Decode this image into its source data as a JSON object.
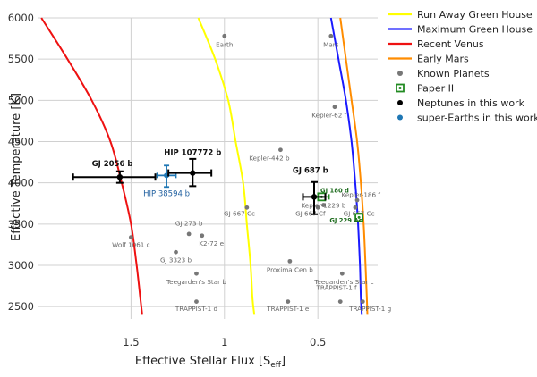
{
  "chart_data": {
    "type": "scatter",
    "xlabel": "Effective Stellar Flux [S",
    "xlabel_sub": "eff",
    "xlabel_close": "]",
    "ylabel": "Effective Temperature [K]",
    "x_reversed": true,
    "xlim": [
      2.0,
      0.18
    ],
    "ylim": [
      2350,
      6000
    ],
    "x_ticks": [
      1.5,
      1,
      0.5
    ],
    "x_tick_labels": [
      "1.5",
      "1",
      "0.5"
    ],
    "y_ticks": [
      2500,
      3000,
      3500,
      4000,
      4500,
      5000,
      5500,
      6000
    ],
    "y_tick_labels": [
      "2500",
      "3000",
      "3500",
      "4000",
      "4500",
      "5000",
      "5500",
      "6000"
    ],
    "grid": true,
    "legend_position": "right",
    "colors": {
      "run_away": "#ffff00",
      "max_gh": "#1a1aff",
      "recent_venus": "#ee1111",
      "early_mars": "#ff8c00",
      "known": "#777777",
      "paper2": "#228b22",
      "neptunes": "#000000",
      "super_earths": "#1f77b4"
    },
    "legend": [
      {
        "label": "Run Away Green House",
        "kind": "line",
        "color": "#ffff00"
      },
      {
        "label": "Maximum Green House",
        "kind": "line",
        "color": "#1a1aff"
      },
      {
        "label": "Recent Venus",
        "kind": "line",
        "color": "#ee1111"
      },
      {
        "label": "Early Mars",
        "kind": "line",
        "color": "#ff8c00"
      },
      {
        "label": "Known Planets",
        "kind": "dot",
        "color": "#777777"
      },
      {
        "label": "Paper II",
        "kind": "square",
        "color": "#228b22"
      },
      {
        "label": "Neptunes in this work",
        "kind": "dot",
        "color": "#000000"
      },
      {
        "label": "super-Earths in this work",
        "kind": "dot",
        "color": "#1f77b4"
      }
    ],
    "curves": [
      {
        "label": "Recent Venus",
        "color": "#ee1111",
        "points": [
          [
            1.98,
            6000
          ],
          [
            1.84,
            5500
          ],
          [
            1.71,
            5000
          ],
          [
            1.61,
            4500
          ],
          [
            1.55,
            4000
          ],
          [
            1.5,
            3500
          ],
          [
            1.47,
            3000
          ],
          [
            1.45,
            2600
          ],
          [
            1.44,
            2400
          ]
        ]
      },
      {
        "label": "Run Away Green House",
        "color": "#ffff00",
        "points": [
          [
            1.14,
            6000
          ],
          [
            1.05,
            5500
          ],
          [
            0.98,
            5000
          ],
          [
            0.94,
            4500
          ],
          [
            0.9,
            4000
          ],
          [
            0.88,
            3500
          ],
          [
            0.86,
            3000
          ],
          [
            0.85,
            2600
          ],
          [
            0.84,
            2400
          ]
        ]
      },
      {
        "label": "Maximum Green House",
        "color": "#1a1aff",
        "points": [
          [
            0.43,
            6000
          ],
          [
            0.39,
            5500
          ],
          [
            0.35,
            5000
          ],
          [
            0.32,
            4500
          ],
          [
            0.3,
            4000
          ],
          [
            0.285,
            3500
          ],
          [
            0.275,
            3000
          ],
          [
            0.27,
            2600
          ],
          [
            0.265,
            2400
          ]
        ]
      },
      {
        "label": "Early Mars",
        "color": "#ff8c00",
        "points": [
          [
            0.38,
            6000
          ],
          [
            0.35,
            5500
          ],
          [
            0.32,
            5000
          ],
          [
            0.29,
            4500
          ],
          [
            0.27,
            4000
          ],
          [
            0.255,
            3500
          ],
          [
            0.245,
            3000
          ],
          [
            0.238,
            2600
          ],
          [
            0.235,
            2400
          ]
        ]
      }
    ],
    "known_planets": [
      {
        "name": "Earth",
        "x": 1.0,
        "y": 5780,
        "lx": 1.0,
        "ly": 5650
      },
      {
        "name": "Mars",
        "x": 0.43,
        "y": 5780,
        "lx": 0.43,
        "ly": 5650
      },
      {
        "name": "Kepler-62 f",
        "x": 0.41,
        "y": 4920,
        "lx": 0.44,
        "ly": 4790
      },
      {
        "name": "Kepler-442 b",
        "x": 0.7,
        "y": 4400,
        "lx": 0.76,
        "ly": 4270
      },
      {
        "name": "GJ 667 Cc",
        "x": 0.88,
        "y": 3700,
        "lx": 0.92,
        "ly": 3600
      },
      {
        "name": "GJ 667 Cf",
        "x": 0.5,
        "y": 3700,
        "lx": 0.54,
        "ly": 3600
      },
      {
        "name": "Kepler-1229 b",
        "x": 0.47,
        "y": 3730,
        "lx": 0.47,
        "ly": 3700
      },
      {
        "name": "Kepler-186 f",
        "x": 0.29,
        "y": 3790,
        "lx": 0.27,
        "ly": 3830
      },
      {
        "name": "GJ 667 Cc",
        "x": 0.3,
        "y": 3700,
        "lx": 0.28,
        "ly": 3600
      },
      {
        "name": "GJ 273 b",
        "x": 1.19,
        "y": 3380,
        "lx": 1.19,
        "ly": 3480
      },
      {
        "name": "K2-72 e",
        "x": 1.12,
        "y": 3360,
        "lx": 1.07,
        "ly": 3240
      },
      {
        "name": "Wolf 1061 c",
        "x": 1.5,
        "y": 3340,
        "lx": 1.5,
        "ly": 3220
      },
      {
        "name": "GJ 3323 b",
        "x": 1.26,
        "y": 3160,
        "lx": 1.26,
        "ly": 3040
      },
      {
        "name": "Proxima Cen b",
        "x": 0.65,
        "y": 3050,
        "lx": 0.65,
        "ly": 2920
      },
      {
        "name": "Teegarden's Star b",
        "x": 1.15,
        "y": 2900,
        "lx": 1.15,
        "ly": 2770
      },
      {
        "name": "Teegarden's Star c",
        "x": 0.37,
        "y": 2900,
        "lx": 0.36,
        "ly": 2770
      },
      {
        "name": "TRAPPIST-1 d",
        "x": 1.15,
        "y": 2560,
        "lx": 1.15,
        "ly": 2450
      },
      {
        "name": "TRAPPIST-1 e",
        "x": 0.66,
        "y": 2560,
        "lx": 0.66,
        "ly": 2450
      },
      {
        "name": "TRAPPIST-1 f",
        "x": 0.38,
        "y": 2560,
        "lx": 0.4,
        "ly": 2700
      },
      {
        "name": "TRAPPIST-1 g",
        "x": 0.26,
        "y": 2560,
        "lx": 0.22,
        "ly": 2450
      }
    ],
    "neptunes": [
      {
        "name": "GJ 2056 b",
        "x": 1.56,
        "y": 4070,
        "xerr": [
          1.81,
          1.37
        ],
        "yerr": [
          4000,
          4140
        ],
        "lx": 1.6,
        "ly": 4200
      },
      {
        "name": "HIP 107772 b",
        "x": 1.17,
        "y": 4120,
        "xerr": [
          1.3,
          1.07
        ],
        "yerr": [
          3960,
          4290
        ],
        "lx": 1.17,
        "ly": 4340
      },
      {
        "name": "GJ 687 b",
        "x": 0.52,
        "y": 3830,
        "xerr": [
          0.58,
          0.46
        ],
        "yerr": [
          3620,
          4010
        ],
        "lx": 0.54,
        "ly": 4120
      }
    ],
    "super_earths": [
      {
        "name": "HIP 38594 b",
        "x": 1.31,
        "y": 4090,
        "xerr": [
          1.36,
          1.26
        ],
        "yerr": [
          3950,
          4210
        ],
        "lx": 1.31,
        "ly": 3840
      }
    ],
    "paper_ii": [
      {
        "name": "GJ 180 d",
        "x": 0.48,
        "y": 3830,
        "xerr": [
          0.52,
          0.44
        ],
        "lx": 0.41,
        "ly": 3880
      },
      {
        "name": "GJ 229 Ac",
        "x": 0.28,
        "y": 3580,
        "yerr": [
          3530,
          3630
        ],
        "lx": 0.35,
        "ly": 3520
      }
    ]
  }
}
